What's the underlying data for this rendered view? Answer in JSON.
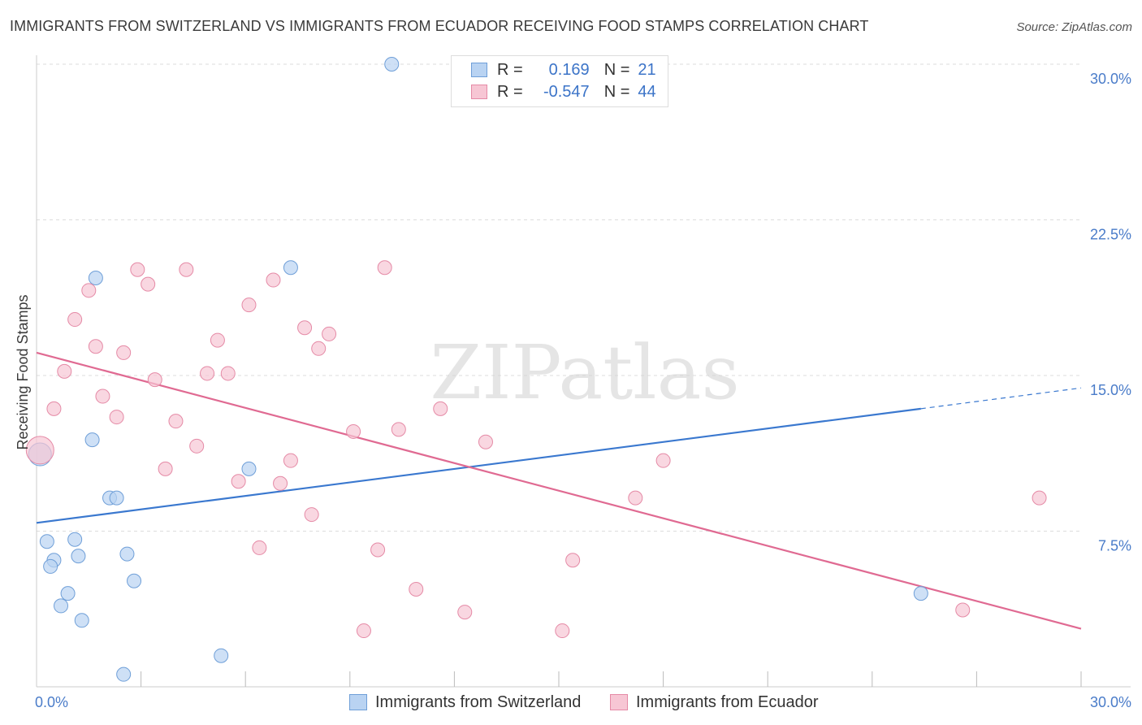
{
  "title": "IMMIGRANTS FROM SWITZERLAND VS IMMIGRANTS FROM ECUADOR RECEIVING FOOD STAMPS CORRELATION CHART",
  "source": "Source: ZipAtlas.com",
  "watermark": "ZIPatlas",
  "legend": {
    "r_label": "R =",
    "n_label": "N =",
    "switzerland": {
      "r": "0.169",
      "n": "21"
    },
    "ecuador": {
      "r": "-0.547",
      "n": "44"
    }
  },
  "colors": {
    "switzerland_fill": "#b9d3f2",
    "switzerland_stroke": "#6f9fd8",
    "switzerland_line": "#3a78cf",
    "ecuador_fill": "#f7c6d4",
    "ecuador_stroke": "#e58aa6",
    "ecuador_line": "#e06a92",
    "tick_text": "#4a7cc9",
    "grid": "#dddddd"
  },
  "chart_data": {
    "type": "scatter",
    "title": "IMMIGRANTS FROM SWITZERLAND VS IMMIGRANTS FROM ECUADOR RECEIVING FOOD STAMPS CORRELATION CHART",
    "xlabel": "",
    "ylabel": "Receiving Food Stamps",
    "xlim": [
      0,
      30
    ],
    "ylim": [
      0,
      30
    ],
    "x_tick_labels": [
      "0.0%",
      "30.0%"
    ],
    "y_tick_labels": [
      "7.5%",
      "15.0%",
      "22.5%",
      "30.0%"
    ],
    "y_ticks": [
      7.5,
      15.0,
      22.5,
      30.0
    ],
    "series": [
      {
        "name": "Immigrants from Switzerland",
        "color": "#6f9fd8",
        "points": [
          [
            0.1,
            11.2
          ],
          [
            1.7,
            19.7
          ],
          [
            10.2,
            30.0
          ],
          [
            7.3,
            20.2
          ],
          [
            1.6,
            11.9
          ],
          [
            2.1,
            9.1
          ],
          [
            2.3,
            9.1
          ],
          [
            6.1,
            10.5
          ],
          [
            0.3,
            7.0
          ],
          [
            1.1,
            7.1
          ],
          [
            0.5,
            6.1
          ],
          [
            1.2,
            6.3
          ],
          [
            2.6,
            6.4
          ],
          [
            0.4,
            5.8
          ],
          [
            2.8,
            5.1
          ],
          [
            0.9,
            4.5
          ],
          [
            0.7,
            3.9
          ],
          [
            1.3,
            3.2
          ],
          [
            5.3,
            1.5
          ],
          [
            2.5,
            0.6
          ],
          [
            25.4,
            4.5
          ]
        ]
      },
      {
        "name": "Immigrants from Ecuador",
        "color": "#e58aa6",
        "points": [
          [
            0.1,
            11.4
          ],
          [
            2.9,
            20.1
          ],
          [
            4.3,
            20.1
          ],
          [
            10.0,
            20.2
          ],
          [
            3.2,
            19.4
          ],
          [
            1.5,
            19.1
          ],
          [
            6.8,
            19.6
          ],
          [
            6.1,
            18.4
          ],
          [
            1.1,
            17.7
          ],
          [
            7.7,
            17.3
          ],
          [
            8.4,
            17.0
          ],
          [
            5.2,
            16.7
          ],
          [
            1.7,
            16.4
          ],
          [
            8.1,
            16.3
          ],
          [
            2.5,
            16.1
          ],
          [
            0.8,
            15.2
          ],
          [
            4.9,
            15.1
          ],
          [
            5.5,
            15.1
          ],
          [
            3.4,
            14.8
          ],
          [
            1.9,
            14.0
          ],
          [
            0.5,
            13.4
          ],
          [
            11.6,
            13.4
          ],
          [
            2.3,
            13.0
          ],
          [
            4.0,
            12.8
          ],
          [
            9.1,
            12.3
          ],
          [
            10.4,
            12.4
          ],
          [
            12.9,
            11.8
          ],
          [
            4.6,
            11.6
          ],
          [
            7.3,
            10.9
          ],
          [
            18.0,
            10.9
          ],
          [
            3.7,
            10.5
          ],
          [
            5.8,
            9.9
          ],
          [
            7.0,
            9.8
          ],
          [
            17.2,
            9.1
          ],
          [
            28.8,
            9.1
          ],
          [
            7.9,
            8.3
          ],
          [
            6.4,
            6.7
          ],
          [
            9.8,
            6.6
          ],
          [
            15.4,
            6.1
          ],
          [
            10.9,
            4.7
          ],
          [
            12.3,
            3.6
          ],
          [
            9.4,
            2.7
          ],
          [
            15.1,
            2.7
          ],
          [
            26.6,
            3.7
          ]
        ]
      }
    ],
    "trendlines": [
      {
        "series": "Immigrants from Switzerland",
        "solid": [
          [
            0,
            7.9
          ],
          [
            25.4,
            13.4
          ]
        ],
        "dashed": [
          [
            25.4,
            13.4
          ],
          [
            30,
            14.4
          ]
        ]
      },
      {
        "series": "Immigrants from Ecuador",
        "solid": [
          [
            0,
            16.1
          ],
          [
            30,
            2.8
          ]
        ]
      }
    ],
    "legend_position": "top-center",
    "grid": true
  },
  "bottom_legend": {
    "switzerland": "Immigrants from Switzerland",
    "ecuador": "Immigrants from Ecuador"
  }
}
